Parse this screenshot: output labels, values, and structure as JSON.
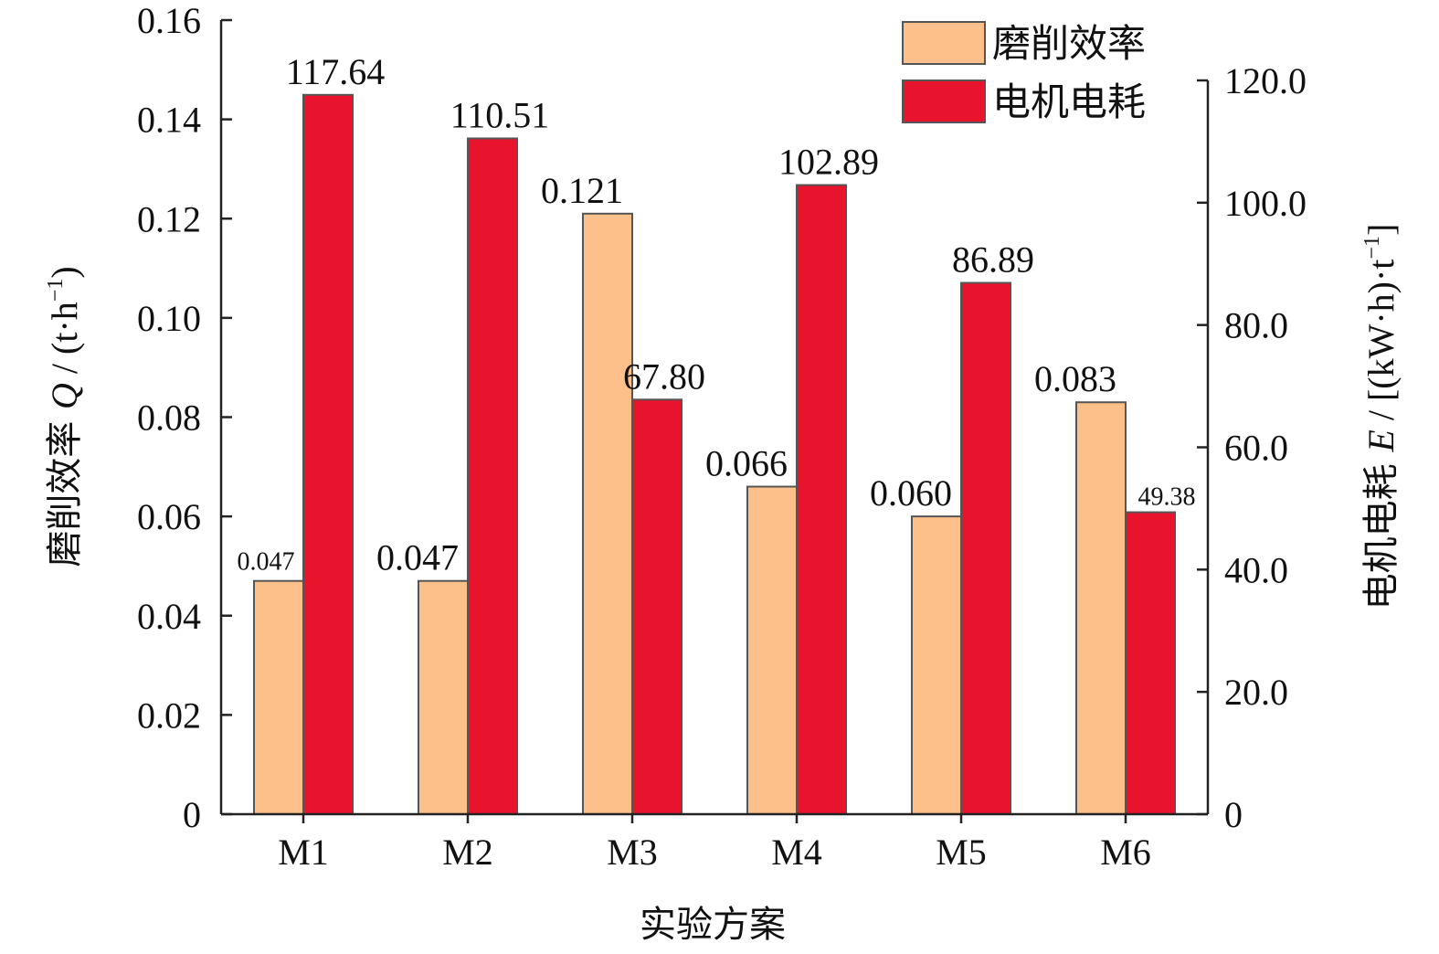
{
  "chart_data": {
    "type": "bar",
    "xlabel": "实验方案",
    "categories": [
      "M1",
      "M2",
      "M3",
      "M4",
      "M5",
      "M6"
    ],
    "y_left": {
      "label_pre": "磨削效率 ",
      "label_var": "Q",
      "label_post": " / (t·h",
      "label_sup": "−1",
      "label_end": ")",
      "range": [
        0,
        0.16
      ],
      "ticks": [
        "0",
        "0.02",
        "0.04",
        "0.06",
        "0.08",
        "0.10",
        "0.12",
        "0.14",
        "0.16"
      ]
    },
    "y_right": {
      "label_pre": "电机电耗 ",
      "label_var": "E",
      "label_post": " / [(kW·h)·t",
      "label_sup": "−1",
      "label_end": "]",
      "range": [
        0,
        130
      ],
      "ticks": [
        "0",
        "20.0",
        "40.0",
        "60.0",
        "80.0",
        "100.0",
        "120.0"
      ]
    },
    "series": [
      {
        "name": "磨削效率",
        "axis": "left",
        "color": "#FDC08A",
        "values": [
          0.047,
          0.047,
          0.121,
          0.066,
          0.06,
          0.083
        ],
        "labels": [
          "0.047",
          "0.047",
          "0.121",
          "0.066",
          "0.060",
          "0.083"
        ]
      },
      {
        "name": "电机电耗",
        "axis": "right",
        "color": "#E8132D",
        "values": [
          117.64,
          110.51,
          67.8,
          102.89,
          86.89,
          49.38
        ],
        "labels": [
          "117.64",
          "110.51",
          "67.80",
          "102.89",
          "86.89",
          "49.38"
        ]
      }
    ],
    "legend": "top-right",
    "grid": false
  }
}
